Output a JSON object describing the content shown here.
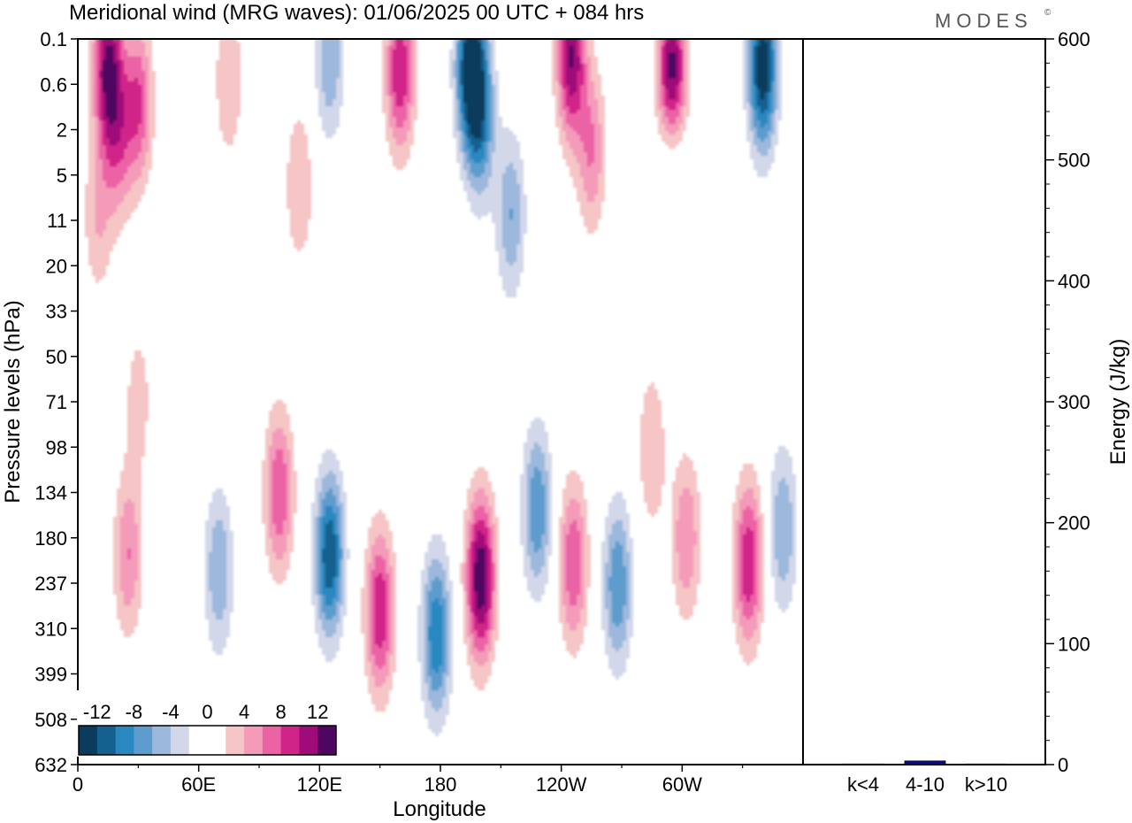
{
  "title": "Meridional wind (MRG waves):  01/06/2025  00 UTC  + 084 hrs",
  "logo": "MODES",
  "logo_mark": "©",
  "chart_data": [
    {
      "type": "heatmap",
      "xlabel": "Longitude",
      "ylabel": "Pressure levels (hPa)",
      "x_ticks": [
        "0",
        "60E",
        "120E",
        "180",
        "120W",
        "60W"
      ],
      "y_ticks": [
        "0.1",
        "0.6",
        "2",
        "5",
        "11",
        "20",
        "33",
        "50",
        "71",
        "98",
        "134",
        "180",
        "237",
        "310",
        "399",
        "508",
        "632"
      ],
      "x_range": [
        "0",
        "360"
      ],
      "y_scale": "log",
      "colorbar": {
        "labels": [
          "-12",
          "-8",
          "-4",
          "0",
          "4",
          "8",
          "12"
        ],
        "colors": [
          "#0b3c5d",
          "#14608f",
          "#2a88c0",
          "#5e9ccd",
          "#9cb8dc",
          "#d2d7ea",
          "#ffffff",
          "#ffffff",
          "#f6c5c5",
          "#f49bba",
          "#ec63a5",
          "#d02488",
          "#9f0b78",
          "#4e0660"
        ]
      },
      "features": [
        {
          "lon": 15,
          "p": 0.3,
          "v": 12
        },
        {
          "lon": 30,
          "p": 1.0,
          "v": 8
        },
        {
          "lon": 20,
          "p": 2.5,
          "v": 6
        },
        {
          "lon": 75,
          "p": 0.5,
          "v": 4
        },
        {
          "lon": 125,
          "p": 0.2,
          "v": -6
        },
        {
          "lon": 160,
          "p": 0.35,
          "v": 10
        },
        {
          "lon": 195,
          "p": 0.3,
          "v": -14
        },
        {
          "lon": 200,
          "p": 1.5,
          "v": -8
        },
        {
          "lon": 245,
          "p": 0.2,
          "v": 12
        },
        {
          "lon": 295,
          "p": 0.4,
          "v": 14
        },
        {
          "lon": 340,
          "p": 0.3,
          "v": -14
        },
        {
          "lon": 255,
          "p": 3.0,
          "v": 6
        },
        {
          "lon": 295,
          "p": 3.0,
          "v": -4
        },
        {
          "lon": 215,
          "p": 10,
          "v": -6
        },
        {
          "lon": 110,
          "p": 6,
          "v": 4
        },
        {
          "lon": 10,
          "p": 10,
          "v": 4
        },
        {
          "lon": 30,
          "p": 70,
          "v": 3
        },
        {
          "lon": 100,
          "p": 134,
          "v": 8
        },
        {
          "lon": 25,
          "p": 200,
          "v": 6
        },
        {
          "lon": 70,
          "p": 220,
          "v": -6
        },
        {
          "lon": 125,
          "p": 200,
          "v": -12
        },
        {
          "lon": 150,
          "p": 280,
          "v": 10
        },
        {
          "lon": 178,
          "p": 320,
          "v": -10
        },
        {
          "lon": 200,
          "p": 230,
          "v": 14
        },
        {
          "lon": 228,
          "p": 150,
          "v": -8
        },
        {
          "lon": 246,
          "p": 210,
          "v": 8
        },
        {
          "lon": 268,
          "p": 240,
          "v": -8
        },
        {
          "lon": 302,
          "p": 180,
          "v": 6
        },
        {
          "lon": 333,
          "p": 210,
          "v": 10
        },
        {
          "lon": 350,
          "p": 170,
          "v": -6
        },
        {
          "lon": 285,
          "p": 100,
          "v": 4
        }
      ]
    },
    {
      "type": "bar",
      "ylabel": "Energy (J/kg)",
      "categories": [
        "k<4",
        "4-10",
        "k>10"
      ],
      "values": [
        0.5,
        3,
        0.5
      ],
      "ylim": [
        0,
        600
      ],
      "y_ticks": [
        "0",
        "100",
        "200",
        "300",
        "400",
        "500",
        "600"
      ],
      "bar_color": "#0b0b8a"
    }
  ]
}
